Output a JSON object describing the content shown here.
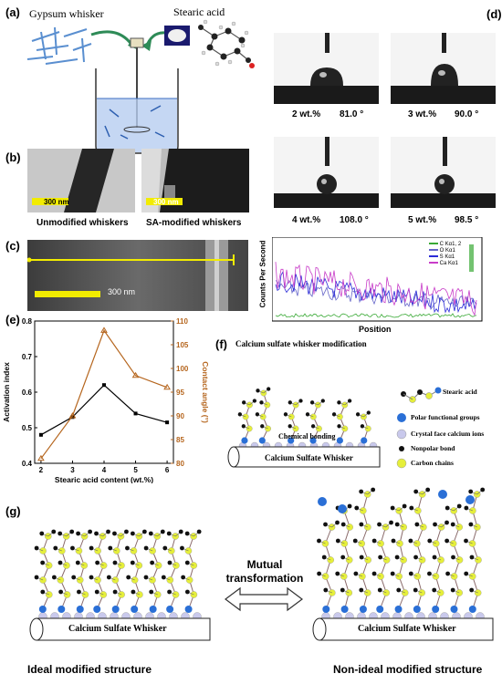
{
  "panel_labels": {
    "a": "(a)",
    "b": "(b)",
    "c": "(c)",
    "d": "(d)",
    "e": "(e)",
    "f": "(f)",
    "g": "(g)"
  },
  "panel_a": {
    "gypsum_label": "Gypsum whisker",
    "stearic_label": "Stearic acid"
  },
  "panel_b": {
    "left_caption": "Unmodified  whiskers",
    "right_caption": "SA-modified  whiskers",
    "left_scale": "300 nm",
    "right_scale": "300 nm"
  },
  "panel_c": {
    "scale": "300 nm"
  },
  "panel_d": {
    "drops": [
      {
        "wt": "2 wt.%",
        "angle": "81.0 °"
      },
      {
        "wt": "3 wt.%",
        "angle": "90.0 °"
      },
      {
        "wt": "4 wt.%",
        "angle": "108.0 °"
      },
      {
        "wt": "5 wt.%",
        "angle": "98.5 °"
      }
    ],
    "eds": {
      "ylabel": "Counts Per Second",
      "xlabel": "Position",
      "legend": [
        "C Kα1, 2",
        "O Kα1",
        "S Kα1",
        "Ca Kα1"
      ],
      "colors": [
        "#39a935",
        "#6464c8",
        "#2b2bd8",
        "#c83cc8"
      ]
    }
  },
  "chart_data": {
    "type": "line",
    "x": [
      2,
      3,
      4,
      5,
      6
    ],
    "xlabel": "Stearic acid content (wt.%)",
    "series": [
      {
        "name": "Activation index",
        "axis": "left",
        "values": [
          0.48,
          0.53,
          0.62,
          0.54,
          0.515
        ],
        "color": "#000000"
      },
      {
        "name": "Contact angle (°)",
        "axis": "right",
        "values": [
          81,
          90,
          108,
          98.5,
          96
        ],
        "color": "#b5651d"
      }
    ],
    "ylabel": "Activation index",
    "ylim": [
      0.4,
      0.8
    ],
    "yticks": [
      "0.4",
      "0.5",
      "0.6",
      "0.7",
      "0.8"
    ],
    "y2label": "Contact angle (°)",
    "y2lim": [
      80,
      110
    ],
    "y2ticks": [
      "80",
      "85",
      "90",
      "95",
      "100",
      "105",
      "110"
    ],
    "xticks": [
      "2",
      "3",
      "4",
      "5",
      "6"
    ]
  },
  "panel_f": {
    "title": "Calcium sulfate whisker modification",
    "bonding": "Chemical bonding",
    "whisker": "Calcium Sulfate Whisker",
    "legend": [
      "Stearic acid",
      "Polar functional groups",
      "Crystal face calcium ions",
      "Nonpolar bond",
      "Carbon chains"
    ],
    "colors": {
      "polar": "#2a6fd6",
      "calcium": "#c9c9ec",
      "carbon": "#e6ef3a",
      "nonpolar": "#111111"
    }
  },
  "panel_g": {
    "mutual": "Mutual\ntransformation",
    "left_whisker": "Calcium Sulfate Whisker",
    "right_whisker": "Calcium Sulfate Whisker",
    "left_caption": "Ideal modified structure",
    "right_caption": "Non-ideal modified structure"
  }
}
